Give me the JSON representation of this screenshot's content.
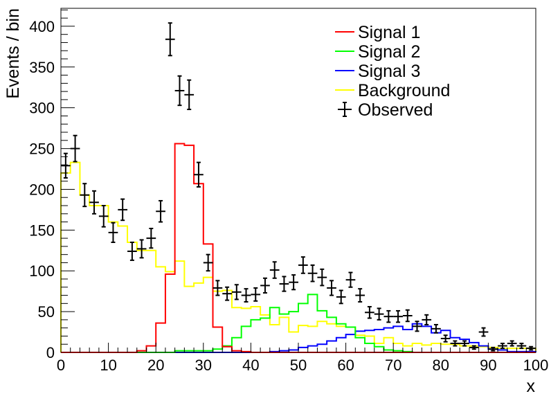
{
  "chart_data": {
    "type": "histogram",
    "xlabel": "x",
    "ylabel": "Events / bin",
    "xlim": [
      0,
      100
    ],
    "ylim": [
      0,
      422
    ],
    "grid": false,
    "legend_position": "top-right",
    "x_ticks": [
      0,
      10,
      20,
      30,
      40,
      50,
      60,
      70,
      80,
      90,
      100
    ],
    "y_ticks": [
      0,
      50,
      100,
      150,
      200,
      250,
      300,
      350,
      400
    ],
    "bin_edges": [
      0,
      2,
      4,
      6,
      8,
      10,
      12,
      14,
      16,
      18,
      20,
      22,
      24,
      26,
      28,
      30,
      32,
      34,
      36,
      38,
      40,
      42,
      44,
      46,
      48,
      50,
      52,
      54,
      56,
      58,
      60,
      62,
      64,
      66,
      68,
      70,
      72,
      74,
      76,
      78,
      80,
      82,
      84,
      86,
      88,
      90,
      92,
      94,
      96,
      98,
      100
    ],
    "series": [
      {
        "name": "Signal 1",
        "kind": "step",
        "color": "#ff0000",
        "values": [
          0,
          0,
          0,
          0,
          0,
          0,
          0,
          0,
          2,
          8,
          36,
          96,
          256,
          254,
          207,
          133,
          31,
          7,
          2,
          1,
          0,
          0,
          0,
          0,
          0,
          0,
          0,
          0,
          0,
          0,
          0,
          0,
          0,
          0,
          0,
          0,
          0,
          0,
          0,
          0,
          0,
          0,
          0,
          0,
          0,
          0,
          0,
          0,
          0,
          0
        ]
      },
      {
        "name": "Signal 2",
        "kind": "step",
        "color": "#00ff00",
        "values": [
          0,
          0,
          0,
          0,
          0,
          0,
          0,
          0,
          0,
          0,
          0,
          0,
          2,
          2,
          2,
          2,
          4,
          8,
          18,
          32,
          40,
          42,
          55,
          47,
          50,
          60,
          71,
          51,
          43,
          35,
          31,
          18,
          11,
          7,
          3,
          2,
          1,
          0,
          0,
          0,
          0,
          0,
          0,
          0,
          0,
          0,
          0,
          0,
          0,
          0
        ]
      },
      {
        "name": "Signal 3",
        "kind": "step",
        "color": "#0000ff",
        "values": [
          0,
          0,
          0,
          0,
          0,
          0,
          0,
          0,
          0,
          0,
          0,
          0,
          0,
          0,
          0,
          0,
          0,
          0,
          0,
          0,
          0,
          0,
          1,
          2,
          3,
          6,
          8,
          10,
          14,
          18,
          22,
          26,
          27,
          28,
          30,
          32,
          28,
          35,
          32,
          24,
          27,
          18,
          16,
          12,
          8,
          4,
          3,
          1,
          1,
          1
        ]
      },
      {
        "name": "Background",
        "kind": "step",
        "color": "#ffff00",
        "values": [
          220,
          233,
          193,
          180,
          180,
          160,
          155,
          135,
          125,
          125,
          105,
          99,
          112,
          81,
          85,
          92,
          75,
          76,
          55,
          54,
          56,
          46,
          34,
          43,
          25,
          33,
          32,
          38,
          35,
          32,
          31,
          21,
          20,
          11,
          18,
          11,
          8,
          11,
          9,
          11,
          10,
          10,
          8,
          8,
          7,
          6,
          5,
          5,
          5,
          5
        ]
      },
      {
        "name": "Observed",
        "kind": "points",
        "color": "#000000",
        "x": [
          1,
          3,
          5,
          7,
          9,
          11,
          13,
          15,
          17,
          19,
          21,
          23,
          25,
          27,
          29,
          31,
          33,
          35,
          37,
          39,
          41,
          43,
          45,
          47,
          49,
          51,
          53,
          55,
          57,
          59,
          61,
          63,
          65,
          67,
          69,
          71,
          73,
          75,
          77,
          79,
          81,
          83,
          85,
          87,
          89,
          91,
          93,
          95,
          97,
          99
        ],
        "values": [
          229,
          250,
          193,
          184,
          167,
          147,
          175,
          124,
          127,
          140,
          173,
          384,
          321,
          316,
          218,
          110,
          79,
          72,
          74,
          70,
          71,
          82,
          101,
          84,
          86,
          107,
          97,
          92,
          79,
          68,
          89,
          70,
          49,
          47,
          44,
          44,
          45,
          32,
          40,
          29,
          17,
          11,
          11,
          6,
          25,
          4,
          8,
          11,
          8,
          5
        ],
        "errors": [
          15,
          16,
          14,
          14,
          13,
          12,
          13,
          11,
          11,
          12,
          13,
          20,
          18,
          18,
          15,
          10,
          9,
          8,
          9,
          8,
          8,
          9,
          10,
          9,
          9,
          10,
          10,
          10,
          9,
          8,
          9,
          8,
          7,
          7,
          7,
          7,
          7,
          6,
          6,
          5,
          4,
          3,
          3,
          2,
          5,
          2,
          3,
          3,
          3,
          2
        ]
      }
    ]
  }
}
